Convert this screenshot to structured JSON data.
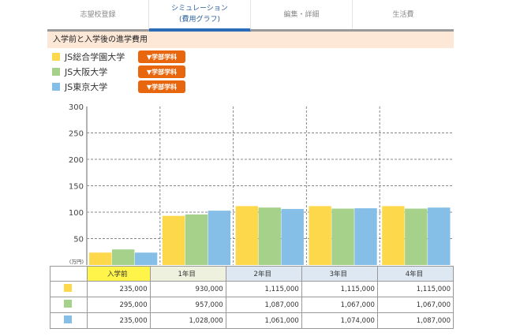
{
  "tabs": [
    {
      "label": "志望校登録"
    },
    {
      "label": "シミュレーション",
      "sub": "(費用グラフ)"
    },
    {
      "label": "編集・詳細"
    },
    {
      "label": "生活費"
    }
  ],
  "section_title": "入学前と入学後の進学費用",
  "legend": [
    {
      "name": "JS総合学園大学",
      "button": "▼学部学科",
      "color": "#fdd84a"
    },
    {
      "name": "JS大阪大学",
      "button": "▼学部学科",
      "color": "#a5d18a"
    },
    {
      "name": "JS東京大学",
      "button": "▼学部学科",
      "color": "#85bfe8"
    }
  ],
  "chart_data": {
    "type": "bar",
    "ylabel": "(万円)",
    "ylim": [
      0,
      300
    ],
    "yticks": [
      50,
      100,
      150,
      200,
      250,
      300
    ],
    "grid": true,
    "categories": [
      "入学前",
      "1年目",
      "2年目",
      "3年目",
      "4年目"
    ],
    "category_colors": [
      "#fff44a",
      "#eef1dd",
      "#dde8f2",
      "#dde8f2",
      "#dde8f2"
    ],
    "series": [
      {
        "name": "JS総合学園大学",
        "values": [
          23.5,
          93,
          111.5,
          111.5,
          111.5
        ],
        "table": [
          "235,000",
          "930,000",
          "1,115,000",
          "1,115,000",
          "1,115,000"
        ]
      },
      {
        "name": "JS大阪大学",
        "values": [
          29.5,
          95.7,
          108.7,
          106.7,
          106.7
        ],
        "table": [
          "295,000",
          "957,000",
          "1,087,000",
          "1,067,000",
          "1,067,000"
        ]
      },
      {
        "name": "JS東京大学",
        "values": [
          23.5,
          102.8,
          106.1,
          107.4,
          108.7
        ],
        "table": [
          "235,000",
          "1,028,000",
          "1,061,000",
          "1,074,000",
          "1,087,000"
        ]
      }
    ]
  }
}
